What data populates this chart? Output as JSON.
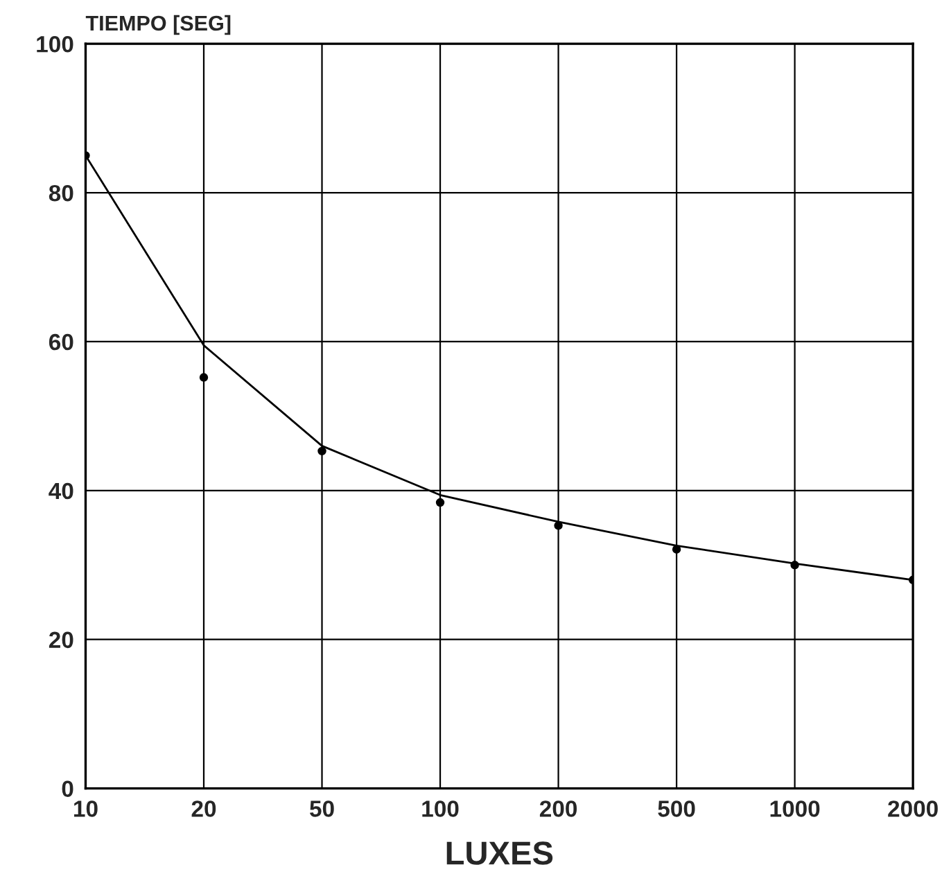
{
  "chart_data": {
    "type": "scatter",
    "ylabel": "TIEMPO [SEG]",
    "xlabel": "LUXES",
    "categories": [
      "10",
      "20",
      "50",
      "100",
      "200",
      "500",
      "1000",
      "2000"
    ],
    "ylim": [
      0,
      100
    ],
    "yticks": [
      0,
      20,
      40,
      60,
      80,
      100
    ],
    "grid": true,
    "marker": "circle",
    "series": [
      {
        "color": "#000000",
        "values": [
          85,
          55.2,
          45.3,
          38.4,
          35.3,
          32.1,
          30.0,
          28.0
        ]
      },
      {
        "type": "line",
        "color": "#000000",
        "marker": "none",
        "line_style": "solid",
        "values": [
          85,
          59.5,
          46,
          39.4,
          35.8,
          32.6,
          30.2,
          28.0
        ]
      }
    ]
  }
}
